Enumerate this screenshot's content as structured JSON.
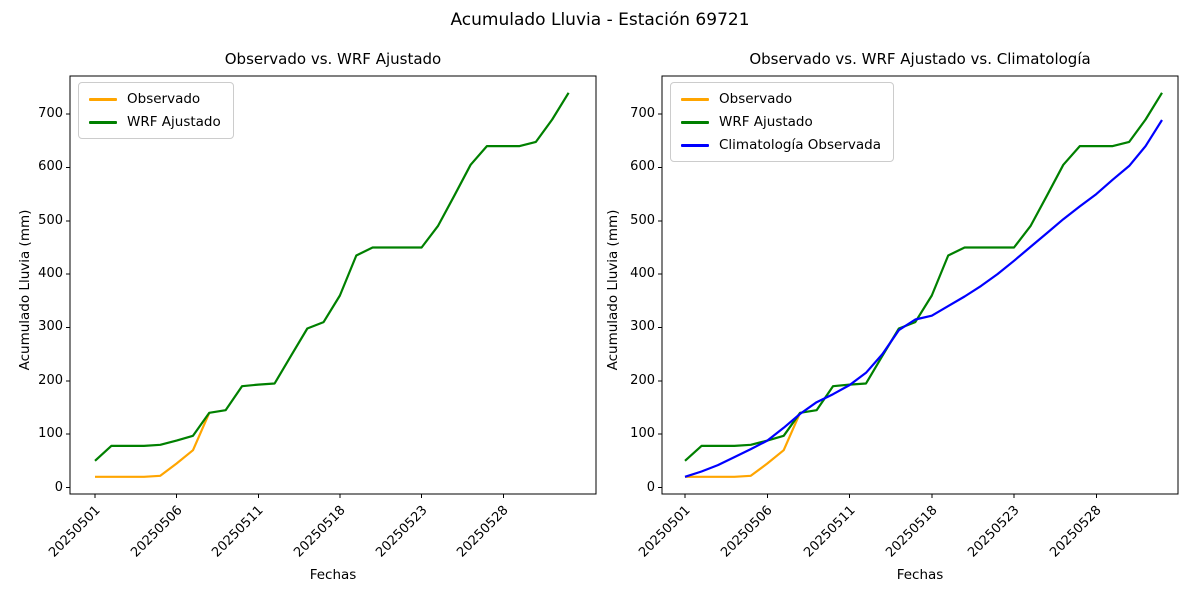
{
  "figure_title": "Acumulado Lluvia - Estación 69721",
  "chart_data": [
    {
      "type": "line",
      "title": "Observado vs. WRF Ajustado",
      "xlabel": "Fechas",
      "ylabel": "Acumulado Lluvia (mm)",
      "x_tick_positions": [
        0,
        5,
        10,
        15,
        20,
        25
      ],
      "x_tick_labels": [
        "20250501",
        "20250506",
        "20250511",
        "20250518",
        "20250523",
        "20250528"
      ],
      "y_ticks": [
        0,
        100,
        200,
        300,
        400,
        500,
        600,
        700
      ],
      "ylim": [
        -15,
        775
      ],
      "grid": false,
      "legend_position": "upper left",
      "n_points": 30,
      "series": [
        {
          "name": "Observado",
          "color": "#FFA500",
          "values": [
            20,
            20,
            20,
            20,
            22,
            45,
            70,
            140
          ]
        },
        {
          "name": "WRF Ajustado",
          "color": "#008000",
          "values": [
            50,
            78,
            78,
            78,
            80,
            88,
            97,
            140,
            145,
            190,
            193,
            195,
            247,
            298,
            310,
            360,
            435,
            450,
            450,
            450,
            450,
            490,
            547,
            605,
            640,
            640,
            640,
            648,
            690,
            740
          ]
        }
      ]
    },
    {
      "type": "line",
      "title": "Observado vs. WRF Ajustado vs. Climatología",
      "xlabel": "Fechas",
      "ylabel": "Acumulado Lluvia (mm)",
      "x_tick_positions": [
        0,
        5,
        10,
        15,
        20,
        25
      ],
      "x_tick_labels": [
        "20250501",
        "20250506",
        "20250511",
        "20250518",
        "20250523",
        "20250528"
      ],
      "y_ticks": [
        0,
        100,
        200,
        300,
        400,
        500,
        600,
        700
      ],
      "ylim": [
        -15,
        775
      ],
      "grid": false,
      "legend_position": "upper left",
      "n_points": 30,
      "series": [
        {
          "name": "Observado",
          "color": "#FFA500",
          "values": [
            20,
            20,
            20,
            20,
            22,
            45,
            70,
            140
          ]
        },
        {
          "name": "WRF Ajustado",
          "color": "#008000",
          "values": [
            50,
            78,
            78,
            78,
            80,
            88,
            97,
            140,
            145,
            190,
            193,
            195,
            247,
            298,
            310,
            360,
            435,
            450,
            450,
            450,
            450,
            490,
            547,
            605,
            640,
            640,
            640,
            648,
            690,
            740
          ]
        },
        {
          "name": "Climatología Observada",
          "color": "#0000FF",
          "values": [
            20,
            30,
            42,
            57,
            72,
            88,
            112,
            138,
            160,
            175,
            192,
            215,
            250,
            295,
            315,
            322,
            340,
            358,
            378,
            400,
            425,
            451,
            477,
            503,
            527,
            550,
            577,
            603,
            640,
            689
          ]
        }
      ]
    }
  ]
}
